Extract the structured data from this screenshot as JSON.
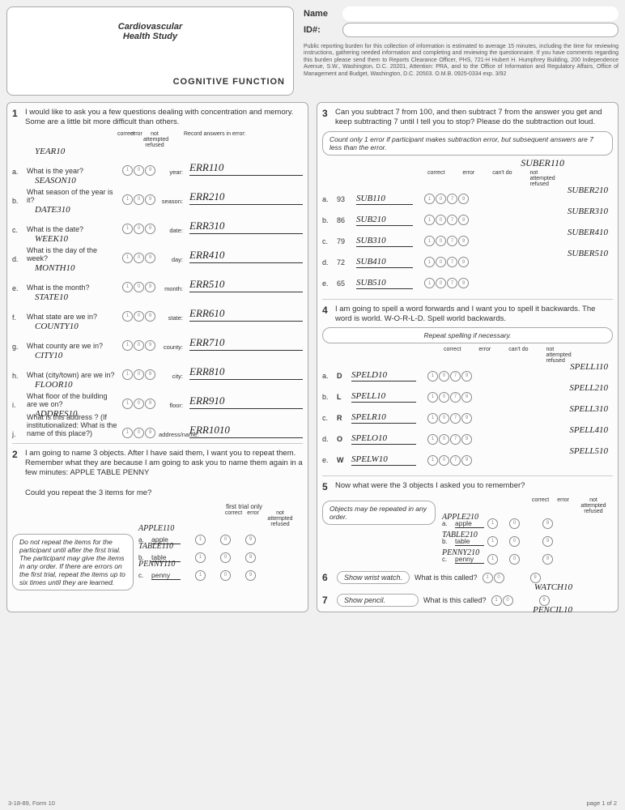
{
  "header": {
    "study_line1": "Cardiovascular",
    "study_line2": "Health Study",
    "section_title": "COGNITIVE FUNCTION",
    "name_label": "Name",
    "id_label": "ID#:",
    "disclaimer": "Public reporting burden for this collection of information is estimated to average 15 minutes, including the time for reviewing instructions, gathering needed information and completing and reviewing the questionnaire. If you have comments regarding this burden please send them to Reports Clearance Officer, PHS, 721-H Hubert H. Humphrey Building, 200 Independence Avenue, S.W., Washington, D.C. 20201, Attention: PRA, and to the Office of Information and Regulatory Affairs, Office of Management and Budget, Washington, D.C. 20503. O.M.B. 0925-0334 exp. 3/92"
  },
  "q1": {
    "num": "1",
    "text": "I would like to ask you a few questions dealing with concentration and memory. Some are a little bit more difficult than others.",
    "col_head1": "correct",
    "col_head2": "error",
    "col_head3": "not attempted refused",
    "col_head4": "Record answers in error:",
    "items": [
      {
        "l": "a.",
        "q": "What is the year?",
        "var": "YEAR10",
        "mini": "year:",
        "ans": "ERR110"
      },
      {
        "l": "b.",
        "q": "What season of the year is it?",
        "var": "SEASON10",
        "mini": "season:",
        "ans": "ERR210"
      },
      {
        "l": "c.",
        "q": "What is the date?",
        "var": "DATE310",
        "mini": "date:",
        "ans": "ERR310"
      },
      {
        "l": "d.",
        "q": "What is the day of the week?",
        "var": "WEEK10",
        "mini": "day:",
        "ans": "ERR410"
      },
      {
        "l": "e.",
        "q": "What is the month?",
        "var": "MONTH10",
        "mini": "month:",
        "ans": "ERR510"
      },
      {
        "l": "f.",
        "q": "What state are we in?",
        "var": "STATE10",
        "mini": "state:",
        "ans": "ERR610"
      },
      {
        "l": "g.",
        "q": "What county are we in?",
        "var": "COUNTY10",
        "mini": "county:",
        "ans": "ERR710"
      },
      {
        "l": "h.",
        "q": "What (city/town) are we in?",
        "var": "CITY10",
        "mini": "city:",
        "ans": "ERR810"
      },
      {
        "l": "i.",
        "q": "What floor of the building are we on?",
        "var": "FLOOR10",
        "mini": "floor:",
        "ans": "ERR910"
      },
      {
        "l": "j.",
        "q": "What is this address ? (If institutionalized: What is the name of this place?)",
        "var": "ADDRES10",
        "mini": "address/name:",
        "ans": "ERR1010"
      }
    ]
  },
  "q2": {
    "num": "2",
    "text": "I am going to name 3 objects. After I have said them, I want you to repeat them. Remember what they are because I am going to ask you to name them again in a few minutes:    APPLE    TABLE    PENNY",
    "sub": "Could you repeat the 3 items for me?",
    "trial_head": "first trial only",
    "col1": "correct",
    "col2": "error",
    "col3": "not attempted refused",
    "note": "Do not repeat the items for the participant until after the first trial. The participant may give the items in any order. If there are errors on the first trial, repeat the items up to six times until they are learned.",
    "items": [
      {
        "l": "a.",
        "n": "apple",
        "var": "APPLE110"
      },
      {
        "l": "b.",
        "n": "table",
        "var": "TABLE110"
      },
      {
        "l": "c.",
        "n": "penny",
        "var": "PENNY110"
      }
    ]
  },
  "q3": {
    "num": "3",
    "text": "Can you subtract 7 from 100, and then subtract 7 from the answer you get and keep subtracting 7 until I tell you to stop? Please do the subtraction out loud.",
    "note": "Count only 1 error if participant makes subtraction error, but subsequent answers are 7 less than the error.",
    "suber_head": "SUBER110",
    "c1": "correct",
    "c2": "error",
    "c3": "can't do",
    "c4": "not attempted refused",
    "items": [
      {
        "l": "a.",
        "n": "93",
        "var": "SUB110",
        "suber": "SUBER210"
      },
      {
        "l": "b.",
        "n": "86",
        "var": "SUB210",
        "suber": "SUBER310"
      },
      {
        "l": "c.",
        "n": "79",
        "var": "SUB310",
        "suber": "SUBER410"
      },
      {
        "l": "d.",
        "n": "72",
        "var": "SUB410",
        "suber": "SUBER510"
      },
      {
        "l": "e.",
        "n": "65",
        "var": "SUB510",
        "suber": ""
      }
    ],
    "suber_top": "SUBER110"
  },
  "q4": {
    "num": "4",
    "text": "I am going to spell a word forwards and I want you to spell it backwards. The word is world.   W-O-R-L-D. Spell world backwards.",
    "note": "Repeat spelling if necessary.",
    "c1": "correct",
    "c2": "error",
    "c3": "can't do",
    "c4": "not attempted refused",
    "items": [
      {
        "l": "a.",
        "letter": "D",
        "var": "SPELD10",
        "sp": "SPELL110"
      },
      {
        "l": "b.",
        "letter": "L",
        "var": "SPELL10",
        "sp": "SPELL210"
      },
      {
        "l": "c.",
        "letter": "R",
        "var": "SPELR10",
        "sp": "SPELL310"
      },
      {
        "l": "d.",
        "letter": "O",
        "var": "SPELO10",
        "sp": "SPELL410"
      },
      {
        "l": "e.",
        "letter": "W",
        "var": "SPELW10",
        "sp": "SPELL510"
      }
    ]
  },
  "q5": {
    "num": "5",
    "text": "Now what were the 3 objects I asked you to remember?",
    "note": "Objects may be repeated in any order.",
    "c1": "correct",
    "c2": "error",
    "c3": "not attempted refused",
    "items": [
      {
        "l": "a.",
        "n": "apple",
        "var": "APPLE210"
      },
      {
        "l": "b.",
        "n": "table",
        "var": "TABLE210"
      },
      {
        "l": "c.",
        "n": "penny",
        "var": "PENNY210"
      }
    ]
  },
  "q6": {
    "num": "6",
    "pill": "Show wrist watch.",
    "q": "What is this called?",
    "var": "WATCH10"
  },
  "q7": {
    "num": "7",
    "pill": "Show pencil.",
    "q": "What is this called?",
    "var": "PENCIL10"
  },
  "footer": {
    "left": "3-18-89, Form 10",
    "right": "page 1 of 2"
  }
}
